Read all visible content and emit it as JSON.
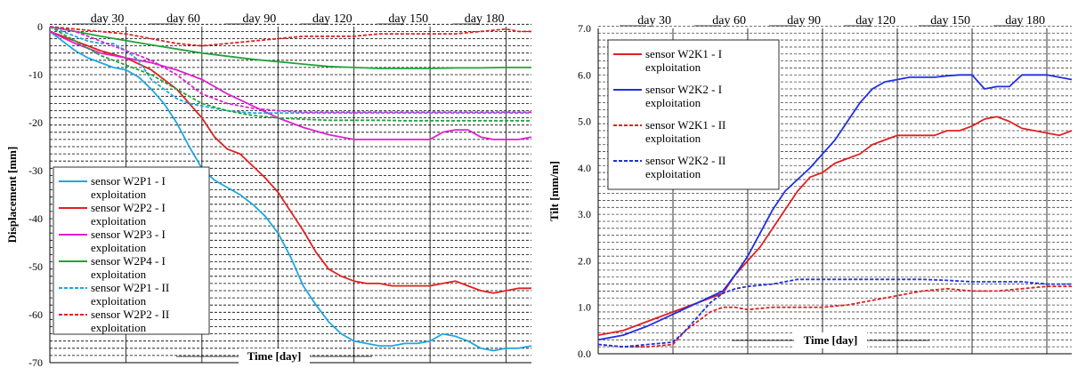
{
  "chart_data": [
    {
      "type": "line",
      "x_tick_labels": [
        "day 30",
        "day 60",
        "day 90",
        "day 120",
        "day 150",
        "day 180"
      ],
      "x_tick_values": [
        30,
        60,
        90,
        120,
        150,
        180
      ],
      "xlim": [
        0,
        190
      ],
      "ylim": [
        -70,
        0
      ],
      "y_tick_values": [
        0,
        -10,
        -20,
        -30,
        -40,
        -50,
        -60,
        -70
      ],
      "y_tick_labels": [
        "0",
        "-10",
        "-20",
        "-30",
        "-40",
        "-50",
        "-60",
        "-70"
      ],
      "xlabel": "Time [day]",
      "ylabel": "Displacement [mm]",
      "grid": "horizontal dashed lines every 1.5 units, vertical solid lines at day ticks",
      "legend_position": "bottom-left",
      "series": [
        {
          "name": "sensor W2P1 - I exploitation",
          "color": "#1EA7E0",
          "dash": "solid",
          "x": [
            0,
            5,
            10,
            15,
            20,
            25,
            30,
            35,
            40,
            45,
            50,
            55,
            60,
            65,
            70,
            75,
            80,
            85,
            90,
            95,
            100,
            105,
            110,
            115,
            120,
            125,
            130,
            135,
            140,
            145,
            150,
            155,
            160,
            165,
            170,
            175,
            180,
            185,
            190
          ],
          "y": [
            -1,
            -3,
            -5,
            -6.5,
            -7.5,
            -8.5,
            -9,
            -10.5,
            -13,
            -16,
            -20,
            -25,
            -29.5,
            -32,
            -33.5,
            -35,
            -37,
            -39.5,
            -43,
            -48,
            -54,
            -58,
            -61.5,
            -64,
            -65.5,
            -66,
            -66.5,
            -66.5,
            -66,
            -66,
            -65.5,
            -64,
            -64.5,
            -65.5,
            -67,
            -67.5,
            -67,
            -67,
            -66.5
          ]
        },
        {
          "name": "sensor W2P2 - I exploitation",
          "color": "#E02020",
          "dash": "solid",
          "x": [
            0,
            10,
            20,
            30,
            40,
            50,
            60,
            65,
            70,
            75,
            80,
            85,
            90,
            95,
            100,
            105,
            110,
            115,
            120,
            125,
            130,
            135,
            140,
            145,
            150,
            155,
            160,
            165,
            170,
            175,
            180,
            185,
            190
          ],
          "y": [
            -1,
            -3,
            -5,
            -6.5,
            -9,
            -13,
            -19,
            -23,
            -25.5,
            -26.5,
            -29,
            -31.5,
            -34.5,
            -38.5,
            -42.5,
            -47,
            -50.5,
            -52,
            -53,
            -53.5,
            -53.5,
            -54,
            -54,
            -54,
            -54,
            -53.5,
            -53,
            -54,
            -55,
            -55.5,
            -55,
            -54.5,
            -54.5
          ]
        },
        {
          "name": "sensor W2P3 - I exploitation",
          "color": "#E020D0",
          "dash": "solid",
          "x": [
            0,
            10,
            20,
            30,
            40,
            50,
            60,
            70,
            80,
            90,
            100,
            110,
            120,
            125,
            130,
            140,
            150,
            155,
            160,
            165,
            170,
            175,
            180,
            185,
            190
          ],
          "y": [
            -1,
            -3.5,
            -5.5,
            -6.5,
            -7.5,
            -9,
            -11,
            -14,
            -16.5,
            -19,
            -21,
            -22.5,
            -23.5,
            -23.5,
            -23.5,
            -23.5,
            -23.5,
            -22,
            -21.5,
            -21.5,
            -23,
            -23.5,
            -23.5,
            -23.5,
            -23
          ]
        },
        {
          "name": "sensor W2P4 - I exploitation",
          "color": "#21A33A",
          "dash": "solid",
          "x": [
            0,
            20,
            40,
            60,
            80,
            100,
            110,
            120,
            130,
            140,
            150,
            160,
            170,
            180,
            190
          ],
          "y": [
            0,
            -2,
            -3.8,
            -5.5,
            -6.8,
            -7.8,
            -8.3,
            -8.5,
            -8.7,
            -8.7,
            -8.7,
            -8.6,
            -8.6,
            -8.5,
            -8.5
          ]
        },
        {
          "name": "sensor W2P1 - II exploitation",
          "color": "#1EA7E0",
          "dash": "dashed",
          "x": [
            0,
            5,
            10,
            15,
            20,
            25,
            30,
            35,
            40,
            45,
            50,
            55,
            60,
            70,
            80,
            90,
            100,
            110,
            120,
            130,
            140,
            150,
            160,
            170,
            180,
            190
          ],
          "y": [
            0,
            -1,
            -2,
            -3,
            -3.5,
            -3.5,
            -5,
            -7,
            -11,
            -13,
            -15,
            -16,
            -16.5,
            -17.5,
            -18,
            -18,
            -18,
            -18,
            -18,
            -18,
            -18,
            -18,
            -18,
            -18,
            -18,
            -18
          ]
        },
        {
          "name": "sensor W2P2 - II exploitation",
          "color": "#E02020",
          "dash": "dashed",
          "x": [
            0,
            10,
            20,
            30,
            40,
            50,
            60,
            70,
            80,
            90,
            100,
            110,
            120,
            130,
            140,
            150,
            160,
            170,
            180,
            185,
            190
          ],
          "y": [
            0,
            -0.5,
            -1,
            -1.5,
            -2.5,
            -3.5,
            -4,
            -3.5,
            -3,
            -2.5,
            -2,
            -2,
            -2,
            -1.5,
            -1.5,
            -1.5,
            -1.5,
            -1,
            -0.5,
            -1,
            -1
          ]
        },
        {
          "name": "",
          "color": "#21A33A",
          "dash": "dashed",
          "x": [
            0,
            10,
            20,
            30,
            40,
            50,
            60,
            70,
            80,
            90,
            100,
            110,
            120,
            130,
            140,
            150,
            160,
            170,
            180,
            190
          ],
          "y": [
            0,
            -3,
            -6,
            -8,
            -10,
            -13,
            -16,
            -17.5,
            -18.5,
            -19,
            -19.3,
            -19.5,
            -19.5,
            -19.5,
            -19.6,
            -19.6,
            -19.6,
            -19.6,
            -19.6,
            -19.6
          ]
        },
        {
          "name": "",
          "color": "#E020D0",
          "dash": "dashed",
          "x": [
            0,
            10,
            20,
            30,
            40,
            50,
            60,
            70,
            80,
            90,
            100,
            110,
            120,
            130,
            140,
            150,
            160,
            170,
            180,
            190
          ],
          "y": [
            0,
            -1,
            -3,
            -5,
            -7,
            -10,
            -14,
            -16,
            -17,
            -17.5,
            -17.8,
            -17.8,
            -17.8,
            -17.8,
            -17.8,
            -17.8,
            -17.8,
            -17.8,
            -17.8,
            -17.8
          ]
        }
      ]
    },
    {
      "type": "line",
      "x_tick_labels": [
        "day 30",
        "day 60",
        "day 90",
        "day 120",
        "day 150",
        "day 180"
      ],
      "x_tick_values": [
        30,
        60,
        90,
        120,
        150,
        180
      ],
      "xlim": [
        0,
        190
      ],
      "ylim": [
        0,
        7
      ],
      "y_tick_values": [
        0,
        1,
        2,
        3,
        4,
        5,
        6,
        7
      ],
      "y_tick_labels": [
        "0.0",
        "1.0",
        "2.0",
        "3.0",
        "4.0",
        "5.0",
        "6.0",
        "7.0"
      ],
      "xlabel": "Time [day]",
      "ylabel": "Tilt [mm/m]",
      "grid": "horizontal dashed lines every 0.15 units, vertical solid lines at day ticks",
      "legend_position": "top-left",
      "series": [
        {
          "name": "sensor W2K1 - I exploitation",
          "color": "#E02020",
          "dash": "solid",
          "x": [
            0,
            10,
            20,
            30,
            40,
            50,
            55,
            60,
            65,
            70,
            75,
            80,
            85,
            90,
            95,
            100,
            105,
            110,
            115,
            120,
            125,
            130,
            135,
            140,
            145,
            150,
            155,
            160,
            165,
            170,
            175,
            180,
            185,
            190
          ],
          "y": [
            0.4,
            0.5,
            0.7,
            0.9,
            1.1,
            1.3,
            1.7,
            2.0,
            2.3,
            2.7,
            3.1,
            3.5,
            3.8,
            3.9,
            4.1,
            4.2,
            4.3,
            4.5,
            4.6,
            4.7,
            4.7,
            4.7,
            4.7,
            4.8,
            4.8,
            4.9,
            5.05,
            5.1,
            5.0,
            4.85,
            4.8,
            4.75,
            4.7,
            4.8
          ]
        },
        {
          "name": "sensor W2K2 - I exploitation",
          "color": "#2030E0",
          "dash": "solid",
          "x": [
            0,
            10,
            20,
            30,
            40,
            50,
            55,
            60,
            65,
            70,
            75,
            80,
            85,
            90,
            95,
            100,
            105,
            110,
            115,
            120,
            125,
            130,
            135,
            140,
            145,
            150,
            155,
            160,
            165,
            170,
            175,
            180,
            185,
            190
          ],
          "y": [
            0.3,
            0.4,
            0.6,
            0.85,
            1.1,
            1.35,
            1.7,
            2.1,
            2.6,
            3.1,
            3.5,
            3.75,
            4.0,
            4.3,
            4.6,
            5.0,
            5.4,
            5.7,
            5.85,
            5.9,
            5.95,
            5.95,
            5.95,
            5.98,
            6.0,
            6.0,
            5.7,
            5.75,
            5.75,
            6.0,
            6.0,
            6.0,
            5.95,
            5.9
          ]
        },
        {
          "name": "sensor W2K1 - II exploitation",
          "color": "#E02020",
          "dash": "dashed",
          "x": [
            0,
            10,
            20,
            30,
            35,
            40,
            45,
            50,
            55,
            60,
            70,
            80,
            90,
            100,
            110,
            120,
            130,
            140,
            150,
            160,
            170,
            180,
            190
          ],
          "y": [
            0.2,
            0.15,
            0.15,
            0.2,
            0.5,
            0.7,
            0.9,
            1.0,
            1.0,
            0.95,
            1.0,
            1.0,
            1.0,
            1.05,
            1.15,
            1.25,
            1.35,
            1.4,
            1.35,
            1.35,
            1.4,
            1.45,
            1.45
          ]
        },
        {
          "name": "sensor W2K2 - II exploitation",
          "color": "#2030E0",
          "dash": "dashed",
          "x": [
            0,
            10,
            20,
            30,
            35,
            40,
            45,
            50,
            55,
            60,
            70,
            80,
            90,
            100,
            110,
            120,
            130,
            140,
            150,
            160,
            170,
            180,
            190
          ],
          "y": [
            0.2,
            0.15,
            0.2,
            0.25,
            0.5,
            0.8,
            1.1,
            1.3,
            1.4,
            1.45,
            1.5,
            1.6,
            1.6,
            1.6,
            1.6,
            1.6,
            1.6,
            1.58,
            1.55,
            1.55,
            1.55,
            1.5,
            1.5
          ]
        }
      ]
    }
  ]
}
